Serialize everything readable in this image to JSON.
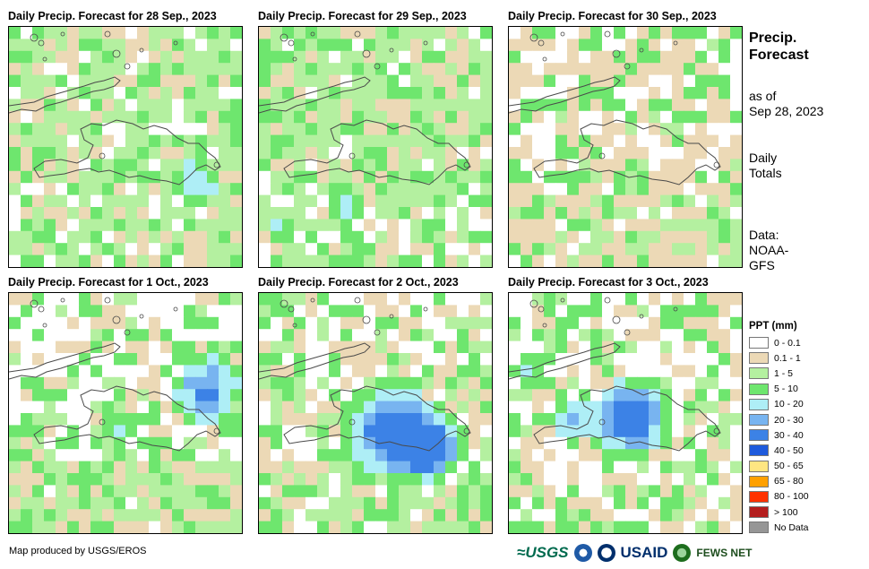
{
  "panels": [
    {
      "title": "Daily Precip. Forecast for 28 Sep., 2023"
    },
    {
      "title": "Daily Precip. Forecast for 29 Sep., 2023"
    },
    {
      "title": "Daily Precip. Forecast for 30 Sep., 2023"
    },
    {
      "title": "Daily Precip. Forecast for 1 Oct., 2023"
    },
    {
      "title": "Daily Precip. Forecast for 2 Oct., 2023"
    },
    {
      "title": "Daily Precip. Forecast for 3 Oct., 2023"
    }
  ],
  "side": {
    "title_line1": "Precip.",
    "title_line2": "Forecast",
    "asof_line1": "as of",
    "asof_line2": "Sep 28, 2023",
    "totals_line1": "Daily",
    "totals_line2": "Totals",
    "source_line1": "Data:",
    "source_line2": "NOAA-",
    "source_line3": "GFS"
  },
  "legend": {
    "title": "PPT (mm)",
    "items": [
      {
        "label": "0 - 0.1",
        "color": "#ffffff"
      },
      {
        "label": "0.1 - 1",
        "color": "#ecd9b6"
      },
      {
        "label": "1 - 5",
        "color": "#b4f0a0"
      },
      {
        "label": "5 - 10",
        "color": "#6ee66e"
      },
      {
        "label": "10 - 20",
        "color": "#aeeef6"
      },
      {
        "label": "20 - 30",
        "color": "#78b4f0"
      },
      {
        "label": "30 - 40",
        "color": "#3c82e6"
      },
      {
        "label": "40 - 50",
        "color": "#1e5adc"
      },
      {
        "label": "50 - 65",
        "color": "#ffe682"
      },
      {
        "label": "65 - 80",
        "color": "#ffa000"
      },
      {
        "label": "80 - 100",
        "color": "#ff3200"
      },
      {
        "label": "> 100",
        "color": "#b41e1e"
      },
      {
        "label": "No Data",
        "color": "#969696"
      }
    ]
  },
  "footer": {
    "credit": "Map produced by USGS/EROS",
    "logo_usgs": "≈USGS",
    "logo_usaid": "USAID",
    "logo_fews": "FEWS NET"
  }
}
